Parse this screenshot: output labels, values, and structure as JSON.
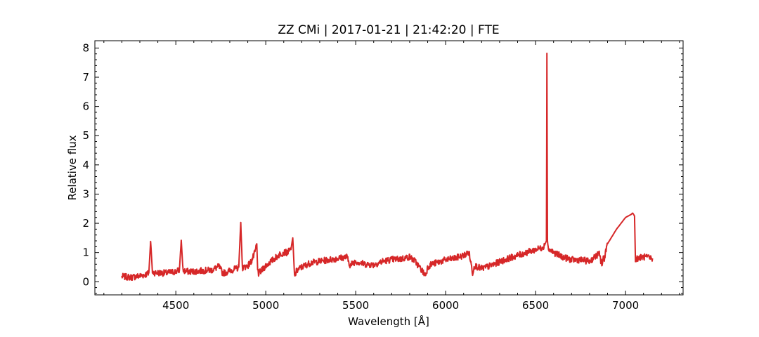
{
  "chart_data": {
    "type": "line",
    "title": "ZZ CMi | 2017-01-21 | 21:42:20 | FTE",
    "xlabel": "Wavelength [Å]",
    "ylabel": "Relative flux",
    "xlim": [
      4050,
      7320
    ],
    "ylim": [
      -0.45,
      8.25
    ],
    "x_ticks": [
      4500,
      5000,
      5500,
      6000,
      6500,
      7000
    ],
    "y_ticks": [
      0,
      1,
      2,
      3,
      4,
      5,
      6,
      7,
      8
    ],
    "x_tick_labels": [
      "4500",
      "5000",
      "5500",
      "6000",
      "6500",
      "7000"
    ],
    "y_tick_labels": [
      "0",
      "1",
      "2",
      "3",
      "4",
      "5",
      "6",
      "7",
      "8"
    ],
    "grid": false,
    "color": "#d62728",
    "series": [
      {
        "x": [
          4200,
          4250,
          4300,
          4340,
          4350,
          4360,
          4370,
          4400,
          4450,
          4500,
          4520,
          4530,
          4540,
          4560,
          4600,
          4650,
          4700,
          4740,
          4760,
          4780,
          4800,
          4820,
          4840,
          4850,
          4861,
          4870,
          4880,
          4900,
          4920,
          4940,
          4950,
          4955,
          4960,
          4980,
          5000,
          5020,
          5050,
          5080,
          5100,
          5120,
          5140,
          5150,
          5160,
          5170,
          5180,
          5200,
          5250,
          5300,
          5350,
          5400,
          5450,
          5470,
          5480,
          5500,
          5550,
          5600,
          5650,
          5700,
          5750,
          5800,
          5830,
          5860,
          5880,
          5890,
          5900,
          5920,
          5950,
          6000,
          6050,
          6100,
          6130,
          6150,
          6160,
          6200,
          6250,
          6300,
          6350,
          6400,
          6450,
          6500,
          6530,
          6550,
          6560,
          6563,
          6566,
          6570,
          6600,
          6650,
          6700,
          6750,
          6800,
          6850,
          6870,
          6880,
          6900,
          6950,
          7000,
          7030,
          7040,
          7050,
          7055,
          7060,
          7100,
          7150
        ],
        "y": [
          0.18,
          0.15,
          0.2,
          0.26,
          0.3,
          1.38,
          0.32,
          0.3,
          0.3,
          0.35,
          0.4,
          1.42,
          0.38,
          0.35,
          0.35,
          0.38,
          0.4,
          0.52,
          0.3,
          0.32,
          0.38,
          0.42,
          0.45,
          0.5,
          2.03,
          0.48,
          0.5,
          0.55,
          0.7,
          1.0,
          1.3,
          0.4,
          0.28,
          0.4,
          0.55,
          0.65,
          0.8,
          0.95,
          1.0,
          1.0,
          1.1,
          1.5,
          0.2,
          0.35,
          0.42,
          0.5,
          0.65,
          0.7,
          0.75,
          0.8,
          0.85,
          0.55,
          0.62,
          0.7,
          0.6,
          0.58,
          0.7,
          0.76,
          0.78,
          0.85,
          0.7,
          0.45,
          0.28,
          0.25,
          0.5,
          0.6,
          0.65,
          0.75,
          0.8,
          0.9,
          1.0,
          0.3,
          0.55,
          0.45,
          0.55,
          0.68,
          0.8,
          0.9,
          1.0,
          1.1,
          1.15,
          1.25,
          1.4,
          7.82,
          1.4,
          1.15,
          1.0,
          0.85,
          0.75,
          0.75,
          0.7,
          0.95,
          0.6,
          0.8,
          1.3,
          1.8,
          2.2,
          2.3,
          2.35,
          2.25,
          0.85,
          0.8,
          0.85,
          0.8
        ]
      }
    ]
  }
}
